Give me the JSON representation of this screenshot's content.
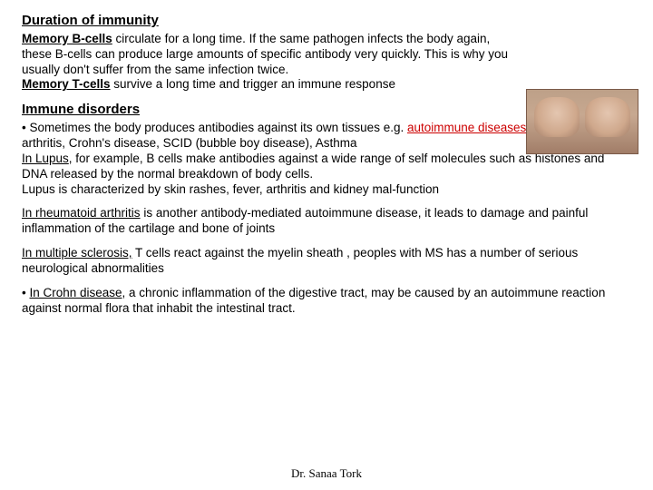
{
  "section1": {
    "heading": "Duration of immunity",
    "p1a": "Memory B-cells",
    "p1b": " circulate for a long time.  If the same pathogen infects the body again, these B-cells can  produce large amounts of specific antibody very quickly.  This is why you usually don't suffer from the same infection twice.",
    "p2a": "Memory T-cells",
    "p2b": " survive a long time and trigger an immune response"
  },
  "section2": {
    "heading": "Immune  disorders",
    "bullet1a": "• Sometimes the body produces antibodies against its own tissues e.g. ",
    "bullet1_red1": "autoimmune diseases",
    "bullet1b": " e.g. rhumatoid arthritis, Crohn's disease, SCID (bubble boy disease), Asthma",
    "lupus_a": "In Lupus",
    "lupus_b": ", for example, B cells make antibodies against a wide range of self molecules such as histones and DNA released by the  normal breakdown of body cells.",
    "lupus_c": "Lupus is characterized by skin rashes, fever, arthritis and kidney mal-function",
    "ra_a": "In rheumatoid arthritis",
    "ra_b": " is another antibody-mediated autoimmune disease, it leads to damage and painful inflammation of the cartilage and bone of joints",
    "ms_a": "In multiple sclerosis,",
    "ms_b": " T cells react against the myelin sheath , peoples with MS has a number of serious neurological abnormalities",
    "crohn_a": "• ",
    "crohn_b": "In Crohn disease",
    "crohn_c": ", a chronic inflammation of the digestive tract, may be caused by an autoimmune reaction against normal flora that inhabit the intestinal tract."
  },
  "footer": "Dr. Sanaa Tork"
}
